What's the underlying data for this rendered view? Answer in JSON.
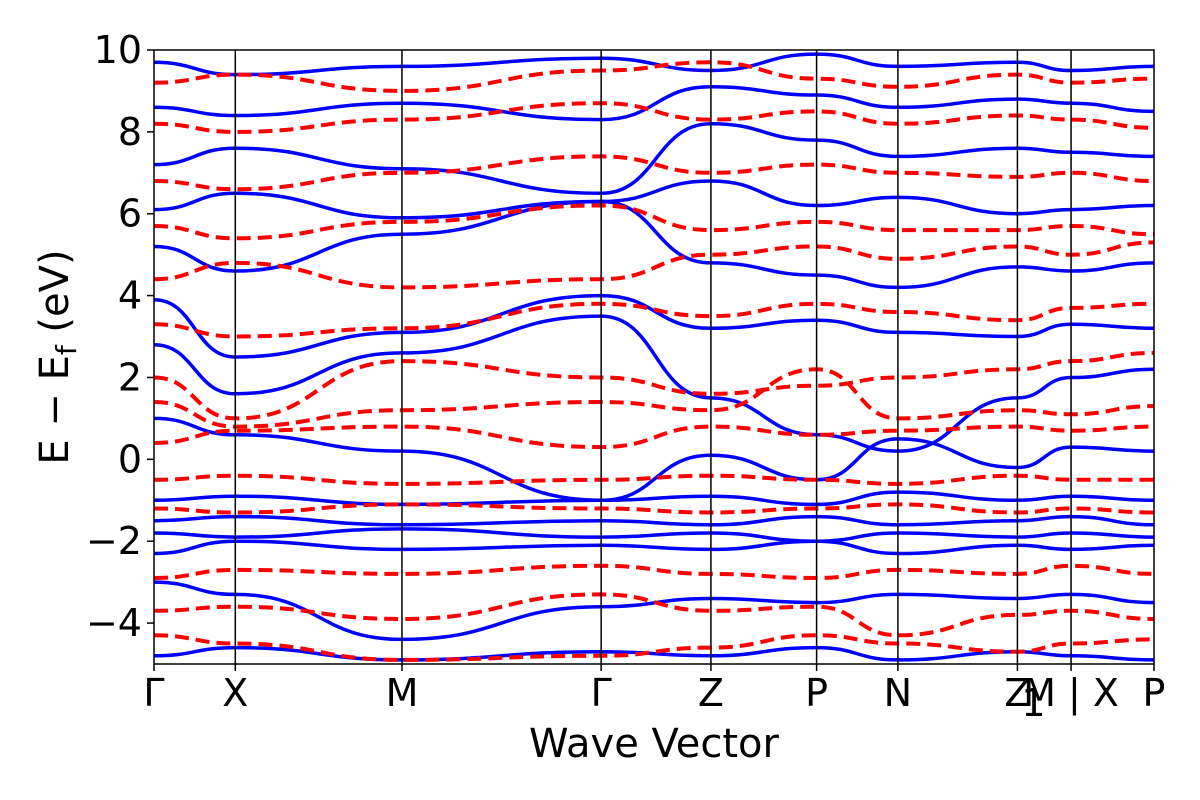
{
  "chart_data": {
    "type": "line",
    "title": "",
    "xlabel": "Wave Vector",
    "ylabel": "E − E",
    "ylabel_sub": "f",
    "ylabel_unit": " (eV)",
    "ylim": [
      -5,
      10
    ],
    "yticks": [
      -4,
      -2,
      0,
      2,
      4,
      6,
      8,
      10
    ],
    "ytick_labels": [
      "−4",
      "−2",
      "0",
      "2",
      "4",
      "6",
      "8",
      "10"
    ],
    "xlim": [
      0,
      12.3
    ],
    "kpoints": [
      {
        "label": "Γ",
        "x": 0.0
      },
      {
        "label": "X",
        "x": 1.0
      },
      {
        "label": "M",
        "x": 3.05
      },
      {
        "label": "Γ",
        "x": 5.5
      },
      {
        "label": "Z",
        "x": 6.85
      },
      {
        "label": "P",
        "x": 8.15
      },
      {
        "label": "N",
        "x": 9.15
      },
      {
        "label": "Z",
        "x": 10.62
      },
      {
        "label": "M | X",
        "x": 11.28
      },
      {
        "label": "P",
        "x": 12.3
      }
    ],
    "kpoint_sublabel": {
      "label": "1",
      "after_index": 7
    },
    "series": [
      {
        "style": "solid",
        "color": "#0000ff",
        "bands": [
          [
            -4.8,
            -4.6,
            -4.9,
            -4.7,
            -4.8,
            -4.6,
            -4.9,
            -4.7,
            -4.8,
            -4.9
          ],
          [
            -3.0,
            -3.3,
            -4.4,
            -3.6,
            -3.4,
            -3.5,
            -3.3,
            -3.4,
            -3.3,
            -3.5
          ],
          [
            -2.3,
            -2.0,
            -2.2,
            -2.1,
            -2.2,
            -2.0,
            -2.3,
            -2.1,
            -2.2,
            -2.1
          ],
          [
            -1.8,
            -1.9,
            -1.7,
            -1.9,
            -1.8,
            -2.0,
            -1.8,
            -1.9,
            -1.8,
            -1.9
          ],
          [
            -1.5,
            -1.4,
            -1.6,
            -1.5,
            -1.6,
            -1.4,
            -1.6,
            -1.5,
            -1.4,
            -1.6
          ],
          [
            -1.0,
            -0.9,
            -1.1,
            -1.0,
            -0.9,
            -1.1,
            -0.8,
            -1.0,
            -0.9,
            -1.0
          ],
          [
            1.0,
            0.6,
            0.2,
            -1.0,
            0.1,
            -0.5,
            0.5,
            -0.2,
            0.3,
            0.2
          ],
          [
            2.8,
            1.6,
            2.6,
            3.5,
            1.5,
            0.6,
            0.2,
            1.5,
            2.0,
            2.2
          ],
          [
            3.9,
            2.5,
            3.1,
            4.0,
            3.2,
            3.4,
            3.1,
            3.0,
            3.3,
            3.2
          ],
          [
            5.2,
            4.6,
            5.5,
            6.3,
            4.8,
            4.5,
            4.2,
            4.7,
            4.6,
            4.8
          ],
          [
            6.1,
            6.5,
            5.9,
            6.3,
            6.8,
            6.2,
            6.4,
            6.0,
            6.1,
            6.2
          ],
          [
            7.2,
            7.6,
            7.1,
            6.5,
            8.2,
            7.8,
            7.4,
            7.6,
            7.5,
            7.4
          ],
          [
            8.6,
            8.4,
            8.7,
            8.3,
            9.1,
            8.9,
            8.6,
            8.8,
            8.7,
            8.5
          ],
          [
            9.7,
            9.4,
            9.6,
            9.8,
            9.5,
            9.9,
            9.6,
            9.7,
            9.5,
            9.6
          ]
        ]
      },
      {
        "style": "dashed",
        "color": "#ff0000",
        "bands": [
          [
            -4.3,
            -4.5,
            -4.9,
            -4.8,
            -4.6,
            -4.3,
            -4.5,
            -4.7,
            -4.5,
            -4.4
          ],
          [
            -3.7,
            -3.6,
            -3.9,
            -3.3,
            -3.7,
            -3.6,
            -4.3,
            -3.8,
            -3.7,
            -3.9
          ],
          [
            -2.9,
            -2.7,
            -2.8,
            -2.6,
            -2.8,
            -2.9,
            -2.7,
            -2.8,
            -2.6,
            -2.8
          ],
          [
            -1.2,
            -1.3,
            -1.1,
            -1.2,
            -1.3,
            -1.2,
            -1.1,
            -1.3,
            -1.2,
            -1.3
          ],
          [
            -0.5,
            -0.4,
            -0.6,
            -0.5,
            -0.4,
            -0.5,
            -0.6,
            -0.4,
            -0.5,
            -0.5
          ],
          [
            0.4,
            0.7,
            0.8,
            0.3,
            0.8,
            0.6,
            0.7,
            0.8,
            0.7,
            0.8
          ],
          [
            1.4,
            0.8,
            1.2,
            1.4,
            1.2,
            2.2,
            1.0,
            1.2,
            1.1,
            1.3
          ],
          [
            2.0,
            1.0,
            2.4,
            2.0,
            1.6,
            1.8,
            2.0,
            2.2,
            2.4,
            2.6
          ],
          [
            3.3,
            3.0,
            3.2,
            3.8,
            3.5,
            3.8,
            3.6,
            3.4,
            3.7,
            3.8
          ],
          [
            4.4,
            4.8,
            4.2,
            4.4,
            5.0,
            5.2,
            4.9,
            5.2,
            5.0,
            5.3
          ],
          [
            5.7,
            5.4,
            5.8,
            6.2,
            5.6,
            5.8,
            5.6,
            5.6,
            5.7,
            5.5
          ],
          [
            6.8,
            6.6,
            7.0,
            7.4,
            7.0,
            7.2,
            7.0,
            6.9,
            7.0,
            6.8
          ],
          [
            8.2,
            8.0,
            8.3,
            8.7,
            8.3,
            8.5,
            8.2,
            8.4,
            8.3,
            8.1
          ],
          [
            9.2,
            9.4,
            9.0,
            9.5,
            9.7,
            9.3,
            9.1,
            9.4,
            9.2,
            9.3
          ]
        ]
      }
    ]
  }
}
